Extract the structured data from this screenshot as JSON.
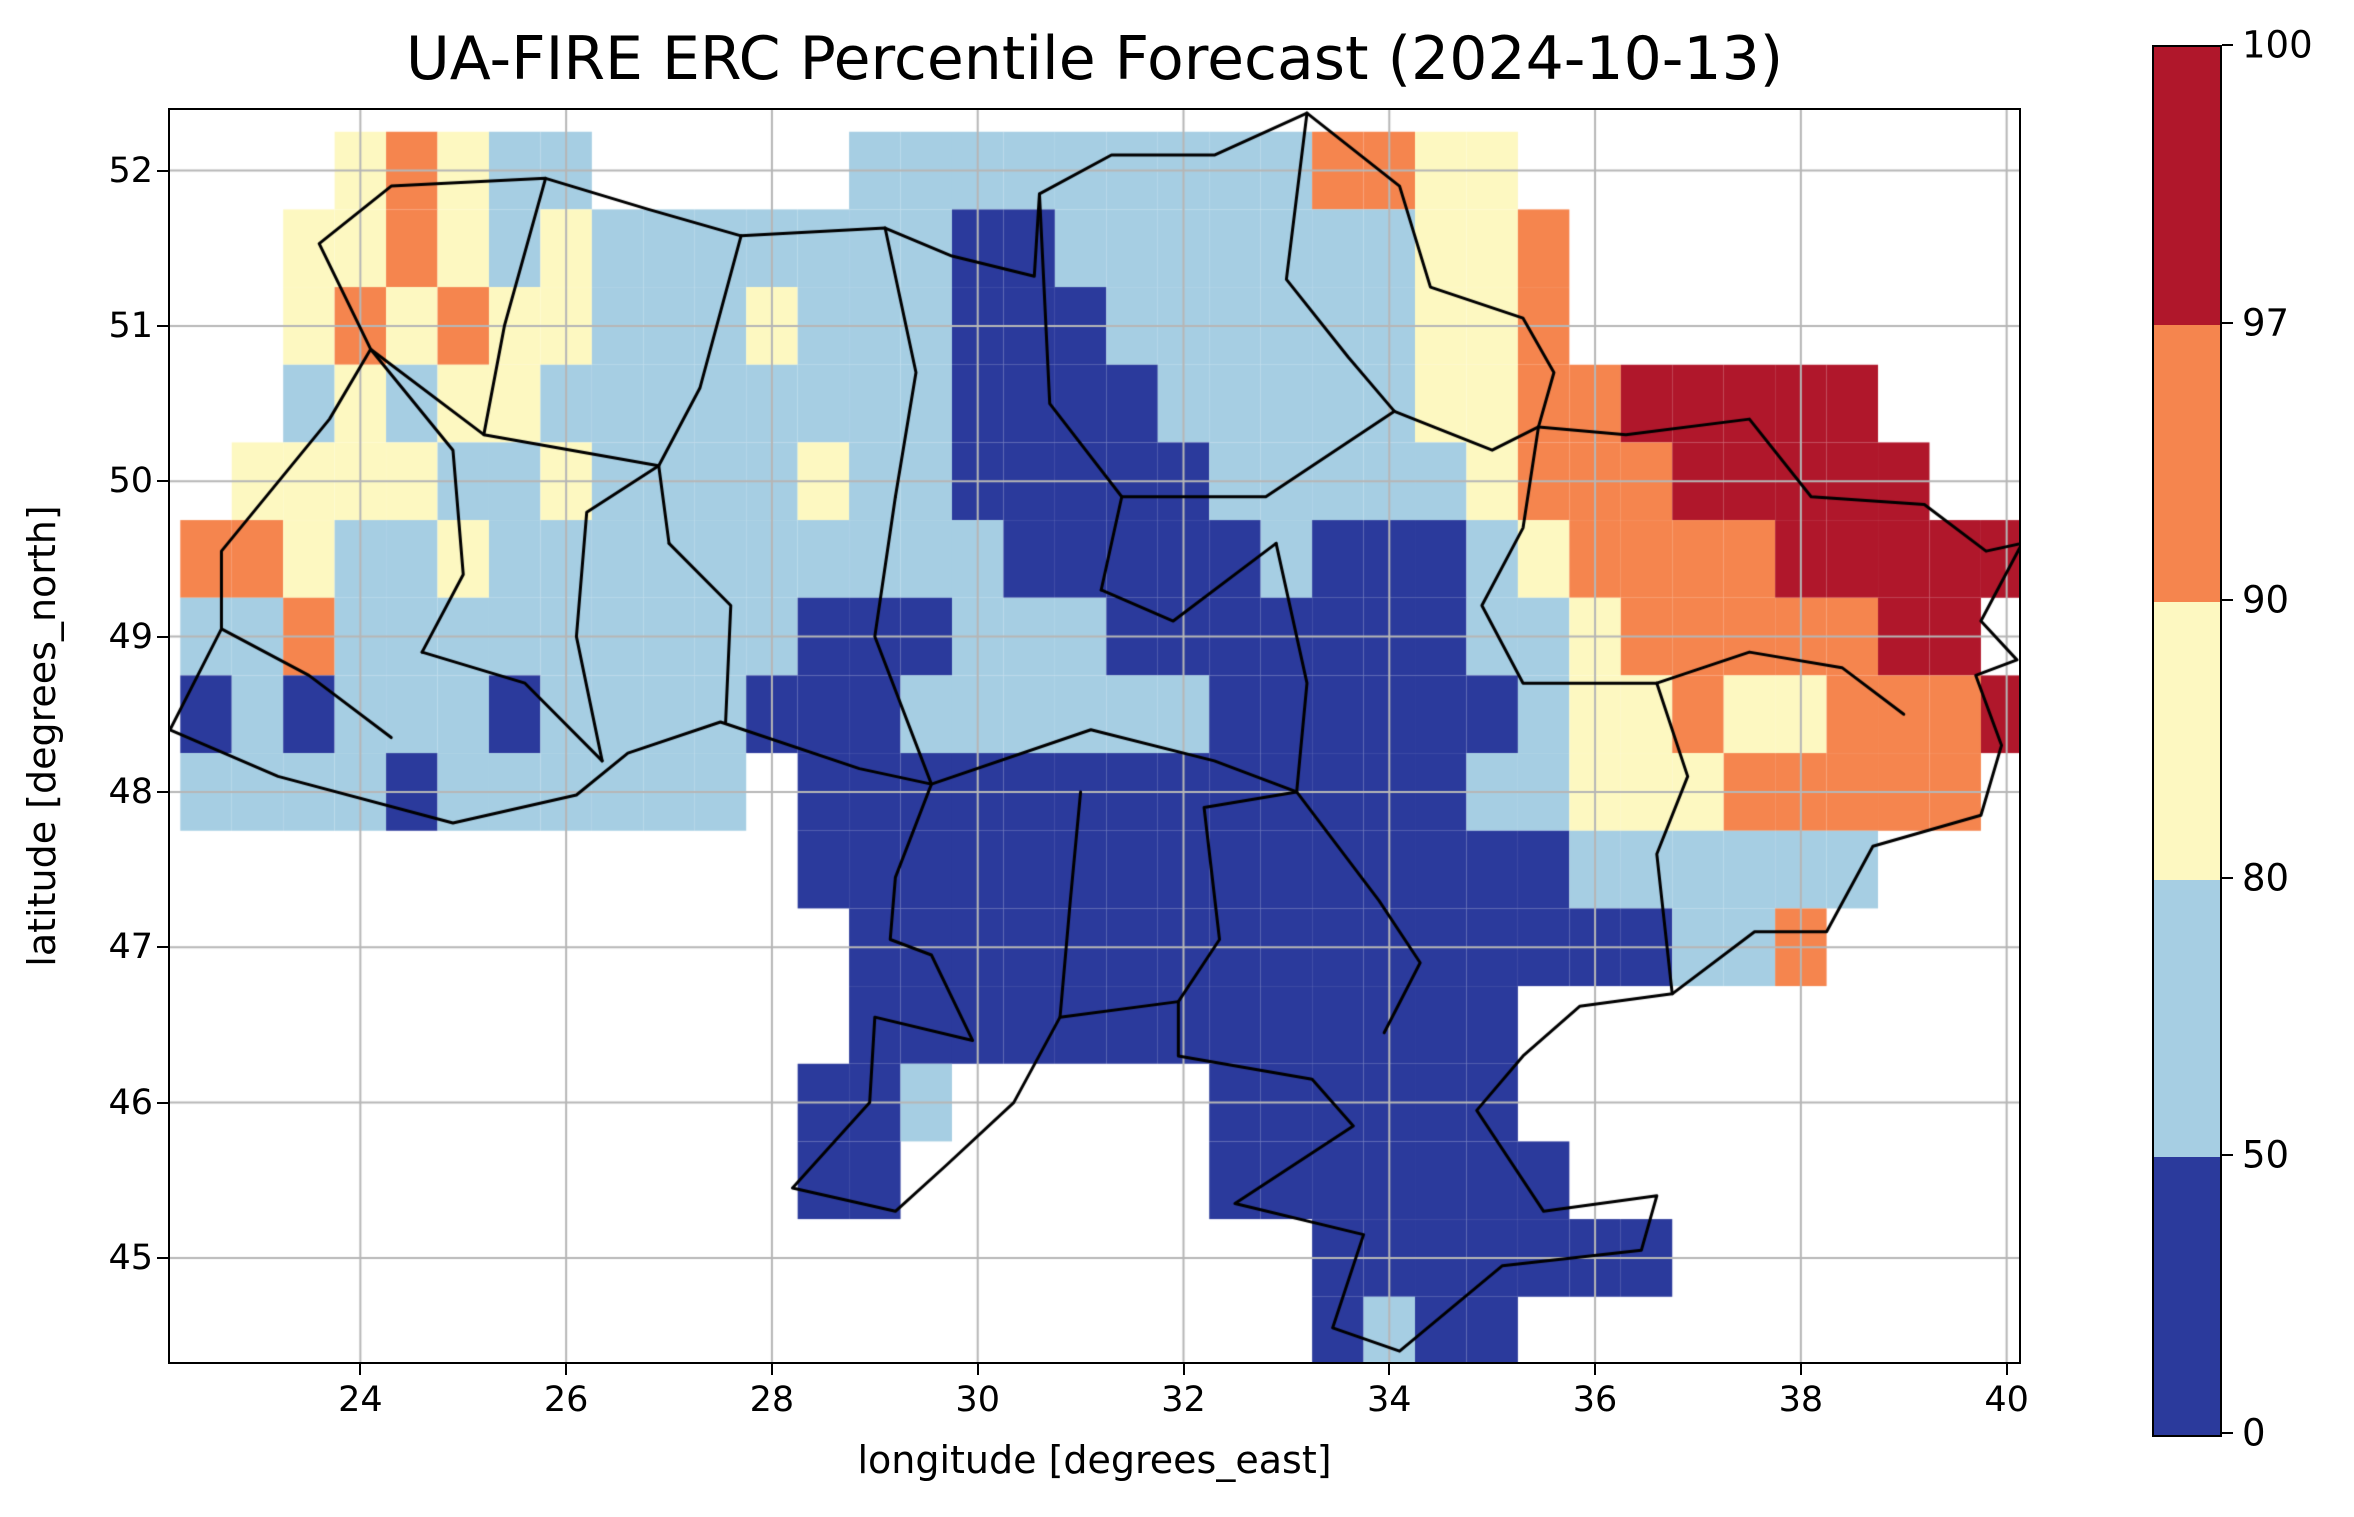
{
  "chart_data": {
    "type": "heatmap",
    "title": "UA-FIRE ERC Percentile Forecast (2024-10-13)",
    "xlabel": "longitude [degrees_east]",
    "ylabel": "latitude [degrees_north]",
    "xlim": [
      22.15,
      40.12
    ],
    "ylim": [
      44.33,
      52.39
    ],
    "xticks": [
      24,
      26,
      28,
      30,
      32,
      34,
      36,
      38,
      40
    ],
    "yticks": [
      45,
      46,
      47,
      48,
      49,
      50,
      51,
      52
    ],
    "grid_on": true,
    "gridline_color": "#b6b6b6",
    "boundary_color": "#000000",
    "colorbar": {
      "boundaries": [
        0,
        50,
        80,
        90,
        97,
        100
      ],
      "tick_labels": [
        "0",
        "50",
        "80",
        "90",
        "97",
        "100"
      ],
      "colors": [
        "#2b3a9c",
        "#a6cee3",
        "#fdf8c1",
        "#f5854e",
        "#b0172b"
      ],
      "bin_labels": [
        "0-50",
        "50-80",
        "80-90",
        "90-97",
        "97-100"
      ],
      "spacing": "uniform",
      "position": "right"
    },
    "grid": {
      "lon_start": 22.5,
      "lat_start": 52.0,
      "cell_deg": 0.5,
      "legend": {
        "0": "no data",
        "1": "0-50",
        "2": "50-80",
        "3": "80-90",
        "4": "90-97",
        "5": "97-100"
      },
      "rows": [
        "000343220000022222222244330000000000",
        "003343232222222112222222334000000000",
        "003434332223222111222222334000000000",
        "002323322222222111122222334455555000",
        "033332232222322111112222234445555500",
        "443223222222222211111211123444455555",
        "224222222222111222111111122344444550",
        "121222122221112222221111112334334445",
        "222212222220111111111111122333444440",
        "000000000000111111111111111222222000",
        "000000000000011111111111111112240000",
        "000000000000011111111111110000000000",
        "000000000000112000001111110000000000",
        "000000000000110000001111111000000000",
        "000000000000000000000011111110000000",
        "000000000000000000000012110000000000"
      ]
    },
    "boundaries": {
      "outline": [
        [
          23.6,
          51.53
        ],
        [
          24.3,
          51.9
        ],
        [
          25.8,
          51.95
        ],
        [
          26.8,
          51.75
        ],
        [
          27.7,
          51.58
        ],
        [
          29.1,
          51.63
        ],
        [
          29.75,
          51.45
        ],
        [
          30.55,
          51.32
        ],
        [
          30.6,
          51.85
        ],
        [
          31.3,
          52.1
        ],
        [
          32.3,
          52.1
        ],
        [
          33.2,
          52.37
        ],
        [
          34.1,
          51.9
        ],
        [
          34.4,
          51.25
        ],
        [
          35.3,
          51.05
        ],
        [
          35.6,
          50.7
        ],
        [
          35.45,
          50.35
        ],
        [
          36.3,
          50.3
        ],
        [
          37.5,
          50.4
        ],
        [
          38.1,
          49.9
        ],
        [
          39.2,
          49.85
        ],
        [
          39.8,
          49.55
        ],
        [
          40.15,
          49.6
        ],
        [
          39.75,
          49.1
        ],
        [
          40.1,
          48.85
        ],
        [
          39.7,
          48.75
        ],
        [
          39.95,
          48.3
        ],
        [
          39.75,
          47.85
        ],
        [
          38.7,
          47.65
        ],
        [
          38.25,
          47.1
        ],
        [
          37.55,
          47.1
        ],
        [
          36.75,
          46.7
        ],
        [
          35.85,
          46.62
        ],
        [
          35.3,
          46.3
        ],
        [
          34.85,
          45.95
        ],
        [
          35.5,
          45.3
        ],
        [
          36.6,
          45.4
        ],
        [
          36.45,
          45.05
        ],
        [
          35.1,
          44.95
        ],
        [
          34.1,
          44.4
        ],
        [
          33.45,
          44.55
        ],
        [
          33.75,
          45.15
        ],
        [
          32.5,
          45.35
        ],
        [
          33.65,
          45.85
        ],
        [
          33.25,
          46.15
        ],
        [
          31.95,
          46.3
        ],
        [
          31.95,
          46.65
        ],
        [
          30.8,
          46.55
        ],
        [
          30.35,
          46.0
        ],
        [
          29.7,
          45.6
        ],
        [
          29.2,
          45.3
        ],
        [
          28.2,
          45.45
        ],
        [
          28.95,
          46.0
        ],
        [
          29.0,
          46.55
        ],
        [
          29.95,
          46.4
        ],
        [
          29.55,
          46.95
        ],
        [
          29.15,
          47.05
        ],
        [
          29.2,
          47.45
        ],
        [
          29.55,
          48.05
        ],
        [
          28.85,
          48.15
        ],
        [
          27.5,
          48.45
        ],
        [
          26.6,
          48.25
        ],
        [
          26.1,
          47.98
        ],
        [
          24.9,
          47.8
        ],
        [
          23.2,
          48.1
        ],
        [
          22.15,
          48.4
        ],
        [
          22.65,
          49.05
        ],
        [
          22.65,
          49.55
        ],
        [
          23.7,
          50.4
        ],
        [
          24.1,
          50.85
        ]
      ],
      "internal": [
        [
          [
            24.1,
            50.85
          ],
          [
            25.2,
            50.3
          ],
          [
            26.9,
            50.1
          ]
        ],
        [
          [
            25.8,
            51.95
          ],
          [
            25.4,
            51.0
          ],
          [
            25.2,
            50.3
          ]
        ],
        [
          [
            27.7,
            51.58
          ],
          [
            27.3,
            50.6
          ],
          [
            26.9,
            50.1
          ],
          [
            27.0,
            49.6
          ]
        ],
        [
          [
            29.1,
            51.63
          ],
          [
            29.4,
            50.7
          ],
          [
            29.2,
            49.9
          ]
        ],
        [
          [
            26.9,
            50.1
          ],
          [
            26.2,
            49.8
          ],
          [
            26.1,
            49.0
          ],
          [
            26.35,
            48.2
          ]
        ],
        [
          [
            27.0,
            49.6
          ],
          [
            27.6,
            49.2
          ],
          [
            27.55,
            48.45
          ]
        ],
        [
          [
            29.2,
            49.9
          ],
          [
            29.0,
            49.0
          ],
          [
            29.55,
            48.05
          ]
        ],
        [
          [
            30.6,
            51.85
          ],
          [
            30.7,
            50.5
          ],
          [
            31.4,
            49.9
          ],
          [
            31.2,
            49.3
          ]
        ],
        [
          [
            33.2,
            52.37
          ],
          [
            33.0,
            51.3
          ],
          [
            33.6,
            50.8
          ],
          [
            34.05,
            50.45
          ]
        ],
        [
          [
            31.4,
            49.9
          ],
          [
            32.8,
            49.9
          ],
          [
            34.05,
            50.45
          ]
        ],
        [
          [
            32.9,
            49.6
          ],
          [
            33.2,
            48.7
          ],
          [
            33.1,
            48.0
          ]
        ],
        [
          [
            29.55,
            48.05
          ],
          [
            31.1,
            48.4
          ],
          [
            32.3,
            48.2
          ],
          [
            33.1,
            48.0
          ]
        ],
        [
          [
            30.8,
            46.55
          ],
          [
            30.9,
            47.3
          ],
          [
            31.0,
            48.0
          ]
        ],
        [
          [
            31.95,
            46.65
          ],
          [
            32.35,
            47.05
          ],
          [
            32.2,
            47.9
          ],
          [
            33.1,
            48.0
          ]
        ],
        [
          [
            33.1,
            48.0
          ],
          [
            33.9,
            47.3
          ],
          [
            34.3,
            46.9
          ],
          [
            33.95,
            46.45
          ]
        ],
        [
          [
            36.75,
            46.7
          ],
          [
            36.6,
            47.6
          ],
          [
            36.9,
            48.1
          ],
          [
            36.6,
            48.7
          ]
        ],
        [
          [
            36.6,
            48.7
          ],
          [
            37.5,
            48.9
          ],
          [
            38.4,
            48.8
          ],
          [
            39.0,
            48.5
          ]
        ],
        [
          [
            35.45,
            50.35
          ],
          [
            35.3,
            49.7
          ],
          [
            34.9,
            49.2
          ],
          [
            35.3,
            48.7
          ],
          [
            36.6,
            48.7
          ]
        ],
        [
          [
            31.2,
            49.3
          ],
          [
            31.9,
            49.1
          ],
          [
            32.9,
            49.6
          ]
        ],
        [
          [
            34.05,
            50.45
          ],
          [
            35.0,
            50.2
          ],
          [
            35.45,
            50.35
          ]
        ],
        [
          [
            24.1,
            50.85
          ],
          [
            24.9,
            50.2
          ],
          [
            25.0,
            49.4
          ],
          [
            24.6,
            48.9
          ]
        ],
        [
          [
            24.6,
            48.9
          ],
          [
            25.6,
            48.7
          ],
          [
            26.35,
            48.2
          ]
        ],
        [
          [
            22.65,
            49.05
          ],
          [
            23.5,
            48.75
          ],
          [
            24.3,
            48.35
          ]
        ]
      ]
    }
  }
}
